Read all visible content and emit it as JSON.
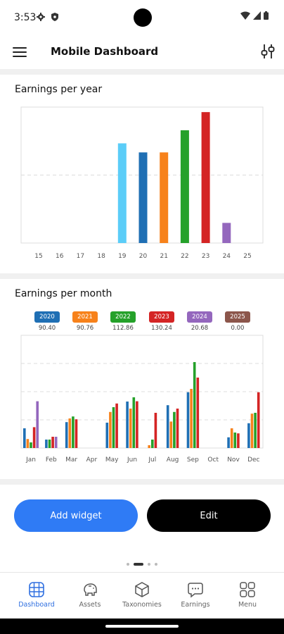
{
  "status_bar": {
    "time": "3:53",
    "icons": [
      "gear-icon",
      "shield-icon",
      "wifi-icon",
      "signal-icon",
      "battery-icon"
    ]
  },
  "app_bar": {
    "title": "Mobile Dashboard",
    "menu_icon": "hamburger-icon",
    "filter_icon": "sliders-icon"
  },
  "yearly_card": {
    "title": "Earnings per year"
  },
  "monthly_card": {
    "title": "Earnings per month",
    "legend": [
      {
        "label": "2020",
        "total": "90.40",
        "color": "#1f6fb4"
      },
      {
        "label": "2021",
        "total": "90.76",
        "color": "#f7821b"
      },
      {
        "label": "2022",
        "total": "112.86",
        "color": "#25a12a"
      },
      {
        "label": "2023",
        "total": "130.24",
        "color": "#d42424"
      },
      {
        "label": "2024",
        "total": "20.68",
        "color": "#9467bd"
      },
      {
        "label": "2025",
        "total": "0.00",
        "color": "#8c564b"
      }
    ]
  },
  "chart_data": [
    {
      "type": "bar",
      "title": "Earnings per year",
      "categories": [
        "15",
        "16",
        "17",
        "18",
        "19",
        "20",
        "21",
        "22",
        "23",
        "24",
        "25"
      ],
      "values": [
        0,
        0,
        0,
        0,
        99,
        90,
        90,
        112,
        130,
        20,
        0
      ],
      "colors": [
        "#17becf",
        "#17becf",
        "#17becf",
        "#17becf",
        "#5bcdf8",
        "#1f6fb4",
        "#f7821b",
        "#25a12a",
        "#d42424",
        "#9467bd",
        "#8c564b"
      ],
      "ylim": [
        0,
        135
      ],
      "grid": true
    },
    {
      "type": "bar",
      "title": "Earnings per month",
      "categories": [
        "Jan",
        "Feb",
        "Mar",
        "Apr",
        "May",
        "Jun",
        "Jul",
        "Aug",
        "Sep",
        "Oct",
        "Nov",
        "Dec"
      ],
      "series": [
        {
          "name": "2020",
          "color": "#1f6fb4",
          "values": [
            7.0,
            3.0,
            9.2,
            0,
            9.0,
            16.5,
            0,
            15.2,
            19.8,
            0,
            3.8,
            8.8
          ]
        },
        {
          "name": "2021",
          "color": "#f7821b",
          "values": [
            3.2,
            0,
            10.5,
            0,
            12.8,
            14.0,
            1.0,
            9.4,
            21.0,
            0,
            7.0,
            12.2
          ]
        },
        {
          "name": "2022",
          "color": "#25a12a",
          "values": [
            2.0,
            3.0,
            11.2,
            0,
            14.5,
            18.0,
            3.0,
            12.8,
            30.5,
            0,
            5.5,
            12.5
          ]
        },
        {
          "name": "2023",
          "color": "#d42424",
          "values": [
            7.4,
            4.0,
            10.2,
            0,
            15.8,
            16.6,
            12.5,
            14.0,
            25.0,
            0,
            5.2,
            19.8
          ]
        },
        {
          "name": "2024",
          "color": "#9467bd",
          "values": [
            16.6,
            4.0,
            0,
            0,
            0,
            0,
            0,
            0,
            0,
            0,
            0,
            0
          ]
        },
        {
          "name": "2025",
          "color": "#8c564b",
          "values": [
            0,
            0,
            0,
            0,
            0,
            0,
            0,
            0,
            0,
            0,
            0,
            0
          ]
        }
      ],
      "ylim": [
        0,
        40
      ],
      "grid": true
    }
  ],
  "actions": {
    "add_widget": "Add widget",
    "edit": "Edit"
  },
  "pager": {
    "pages": 4,
    "active": 1
  },
  "bottom_nav": [
    {
      "label": "Dashboard",
      "icon": "grid-globe-icon",
      "active": true
    },
    {
      "label": "Assets",
      "icon": "piggy-bank-icon",
      "active": false
    },
    {
      "label": "Taxonomies",
      "icon": "cube-icon",
      "active": false
    },
    {
      "label": "Earnings",
      "icon": "chat-dots-icon",
      "active": false
    },
    {
      "label": "Menu",
      "icon": "four-squares-icon",
      "active": false
    }
  ]
}
